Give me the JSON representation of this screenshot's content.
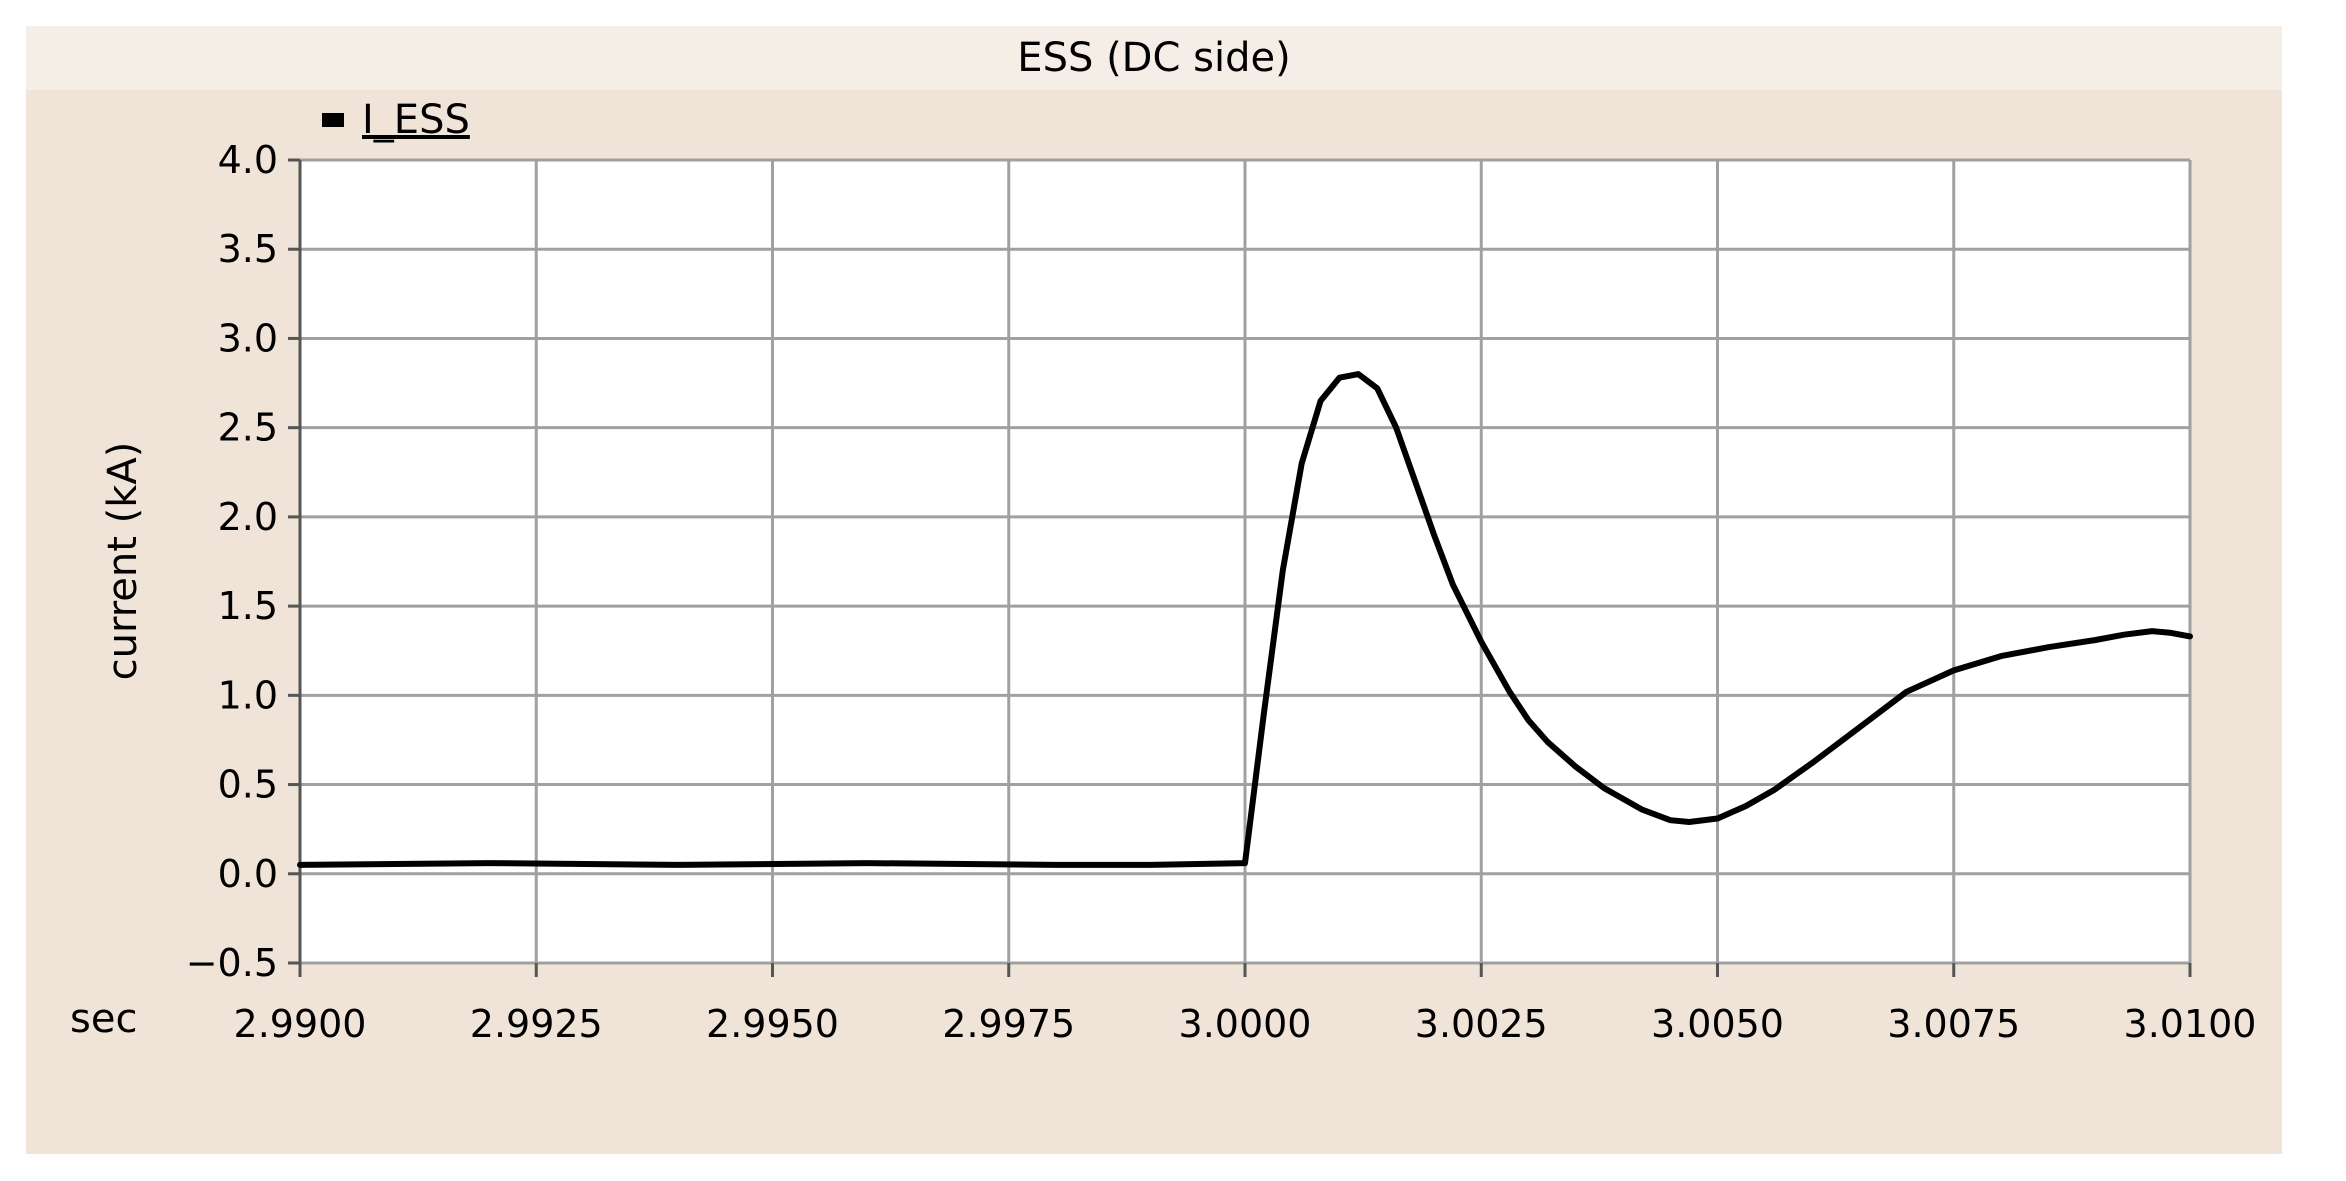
{
  "chart_data": {
    "type": "line",
    "title": "ESS (DC side)",
    "xlabel": "sec",
    "ylabel": "current (kA)",
    "xlim": [
      2.99,
      3.01
    ],
    "ylim": [
      -0.5,
      4.0
    ],
    "x_ticks": [
      "2.9900",
      "2.9925",
      "2.9950",
      "2.9975",
      "3.0000",
      "3.0025",
      "3.0050",
      "3.0075",
      "3.0100"
    ],
    "y_ticks": [
      "4.0",
      "3.5",
      "3.0",
      "2.5",
      "2.0",
      "1.5",
      "1.0",
      "0.5",
      "0.0",
      "−0.5"
    ],
    "grid": true,
    "legend_position": "top-left",
    "series": [
      {
        "name": "I_ESS",
        "color": "#000000",
        "x": [
          2.99,
          2.992,
          2.994,
          2.996,
          2.998,
          2.999,
          3.0,
          3.0002,
          3.0004,
          3.0006,
          3.0008,
          3.001,
          3.0012,
          3.0014,
          3.0016,
          3.0018,
          3.002,
          3.0022,
          3.0025,
          3.0028,
          3.003,
          3.0032,
          3.0035,
          3.0038,
          3.004,
          3.0042,
          3.0045,
          3.0047,
          3.005,
          3.0053,
          3.0056,
          3.006,
          3.0065,
          3.007,
          3.0075,
          3.008,
          3.0085,
          3.009,
          3.0093,
          3.0096,
          3.0098,
          3.01
        ],
        "y": [
          0.05,
          0.06,
          0.05,
          0.06,
          0.05,
          0.05,
          0.06,
          0.9,
          1.7,
          2.3,
          2.65,
          2.78,
          2.8,
          2.72,
          2.5,
          2.2,
          1.9,
          1.62,
          1.3,
          1.02,
          0.86,
          0.74,
          0.6,
          0.48,
          0.42,
          0.36,
          0.3,
          0.29,
          0.31,
          0.38,
          0.47,
          0.62,
          0.82,
          1.02,
          1.14,
          1.22,
          1.27,
          1.31,
          1.34,
          1.36,
          1.35,
          1.33
        ]
      }
    ]
  }
}
